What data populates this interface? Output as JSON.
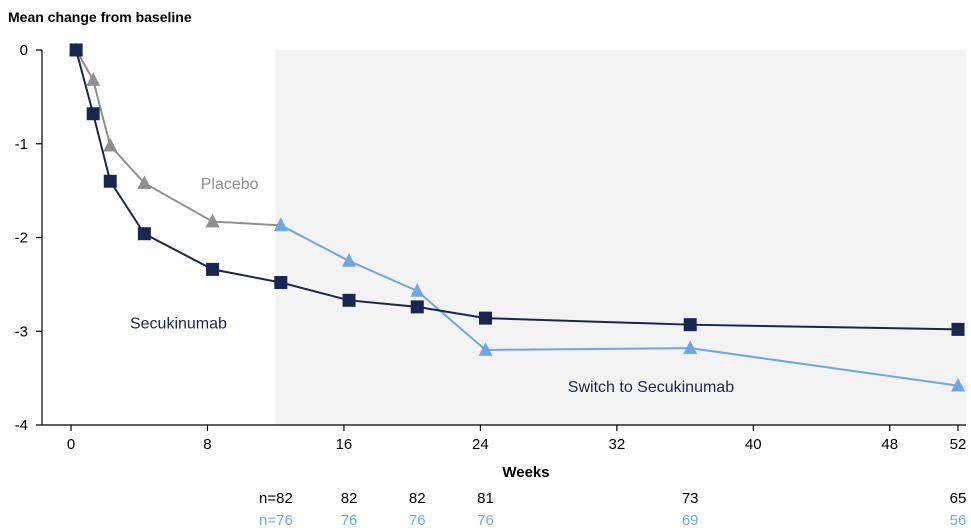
{
  "chart_data": {
    "type": "line",
    "title": "",
    "ylabel": "Mean change from baseline",
    "xlabel": "Weeks",
    "xlim": [
      -1,
      52.5
    ],
    "ylim": [
      -4,
      0
    ],
    "xticks": [
      0,
      8,
      16,
      24,
      32,
      40,
      48,
      52
    ],
    "yticks": [
      0,
      -1,
      -2,
      -3,
      -4
    ],
    "xtick_labels": [
      "0",
      "8",
      "16",
      "24",
      "32",
      "40",
      "48",
      "52"
    ],
    "ytick_labels": [
      "0",
      "-1",
      "-2",
      "-3",
      "-4"
    ],
    "shaded_region": {
      "x_start": 12,
      "x_end": 52.5,
      "color": "#f3f3f3"
    },
    "series": [
      {
        "name": "Secukinumab",
        "marker": "square",
        "color": "#1b2650",
        "x": [
          0.3,
          1.3,
          2.3,
          4.3,
          8.3,
          12.3,
          16.3,
          20.3,
          24.3,
          36.3,
          52
        ],
        "y": [
          0,
          -0.68,
          -1.4,
          -1.96,
          -2.34,
          -2.48,
          -2.67,
          -2.74,
          -2.86,
          -2.93,
          -2.98
        ]
      },
      {
        "name": "Placebo",
        "marker": "triangle",
        "color": "#8f8f8f",
        "x": [
          0.3,
          1.3,
          2.3,
          4.3,
          8.3,
          12.3
        ],
        "y": [
          0,
          -0.32,
          -1.02,
          -1.42,
          -1.83,
          -1.87
        ]
      },
      {
        "name": "Switch to Secukinumab",
        "marker": "triangle",
        "color": "#6fa8e0",
        "x": [
          12.3,
          16.3,
          20.3,
          24.3,
          36.3,
          52
        ],
        "y": [
          -1.87,
          -2.25,
          -2.57,
          -3.2,
          -3.18,
          -3.58
        ]
      }
    ],
    "annotations": [
      {
        "text": "Placebo",
        "x": 9.3,
        "y": -1.48,
        "color": "#8f8f8f"
      },
      {
        "text": "Secukinumab",
        "x": 6.3,
        "y": -2.97,
        "color": "#1b2650"
      },
      {
        "text": "Switch to Secukinumab",
        "x": 34,
        "y": -3.65,
        "color": "#1b2650"
      }
    ],
    "n_at_risk": [
      {
        "color": "#000000",
        "labels": [
          "n=82",
          "82",
          "82",
          "81",
          "73",
          "65"
        ],
        "x": [
          12.3,
          16.3,
          20.3,
          24.3,
          36.3,
          52
        ]
      },
      {
        "color": "#6fa8e0",
        "labels": [
          "n=76",
          "76",
          "76",
          "76",
          "69",
          "56"
        ],
        "x": [
          12.3,
          16.3,
          20.3,
          24.3,
          36.3,
          52
        ]
      }
    ]
  }
}
